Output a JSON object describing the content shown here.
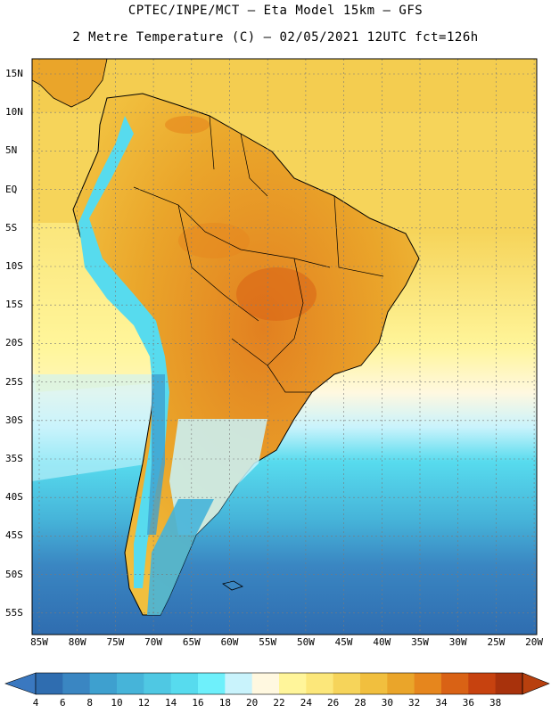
{
  "header": {
    "line1": "CPTEC/INPE/MCT –  Eta Model 15km – GFS",
    "line2": "2 Metre Temperature (C) – 02/05/2021 12UTC fct=126h"
  },
  "lat_labels": [
    "15N",
    "10N",
    "5N",
    "EQ",
    "5S",
    "10S",
    "15S",
    "20S",
    "25S",
    "30S",
    "35S",
    "40S",
    "45S",
    "50S",
    "55S"
  ],
  "lon_labels": [
    "85W",
    "80W",
    "75W",
    "70W",
    "65W",
    "60W",
    "55W",
    "50W",
    "45W",
    "40W",
    "35W",
    "30W",
    "25W",
    "20W"
  ],
  "colorbar": {
    "labels": [
      "4",
      "6",
      "8",
      "10",
      "12",
      "14",
      "16",
      "18",
      "20",
      "22",
      "24",
      "26",
      "28",
      "30",
      "32",
      "34",
      "36",
      "38"
    ],
    "colors": [
      "#2f6db0",
      "#3a86c2",
      "#3ea0cf",
      "#46b4d9",
      "#4fc8e3",
      "#57dbee",
      "#6ef0fb",
      "#c9f3fc",
      "#fff8e0",
      "#fff59a",
      "#fce77a",
      "#f6d45a",
      "#f1bf3e",
      "#eaa52a",
      "#e6861d",
      "#d96215",
      "#c7420f",
      "#a8320c"
    ],
    "low_color": "#3a78c0",
    "high_color": "#b8400e"
  },
  "palette": {
    "land_hot": "#e6861d",
    "land_warm": "#f1bf3e",
    "ocean_warm": "#f6d45a",
    "ocean_mid": "#fff59a",
    "ocean_cool": "#57dbee",
    "ocean_cold": "#3a86c2",
    "ocean_coldest": "#2f6db0"
  }
}
